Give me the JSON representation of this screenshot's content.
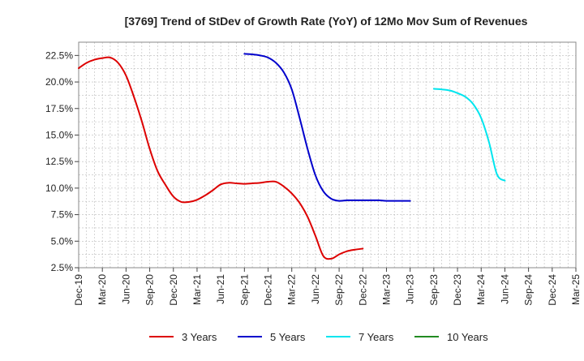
{
  "chart_data": {
    "type": "line",
    "title": "[3769]  Trend of StDev of Growth Rate (YoY) of 12Mo Mov Sum of Revenues",
    "xlabel": "",
    "ylabel": "",
    "ylim": [
      2.5,
      23.75
    ],
    "y_ticks": [
      2.5,
      5.0,
      7.5,
      10.0,
      12.5,
      15.0,
      17.5,
      20.0,
      22.5
    ],
    "y_tick_labels": [
      "2.5%",
      "5.0%",
      "7.5%",
      "10.0%",
      "12.5%",
      "15.0%",
      "17.5%",
      "20.0%",
      "22.5%"
    ],
    "x_tick_labels": [
      "Dec-19",
      "Mar-20",
      "Jun-20",
      "Sep-20",
      "Dec-20",
      "Mar-21",
      "Jun-21",
      "Sep-21",
      "Dec-21",
      "Mar-22",
      "Jun-22",
      "Sep-22",
      "Dec-22",
      "Mar-23",
      "Jun-23",
      "Sep-23",
      "Dec-23",
      "Mar-24",
      "Jun-24",
      "Sep-24",
      "Dec-24",
      "Mar-25"
    ],
    "grid": true,
    "legend_position": "bottom",
    "series": [
      {
        "name": "3 Years",
        "color": "#dd0000",
        "start_index": 0,
        "values": [
          21.3,
          21.8,
          22.1,
          22.25,
          22.3,
          21.8,
          20.6,
          18.6,
          16.3,
          13.7,
          11.6,
          10.3,
          9.2,
          8.7,
          8.7,
          8.9,
          9.3,
          9.8,
          10.35,
          10.5,
          10.45,
          10.4,
          10.45,
          10.5,
          10.6,
          10.6,
          10.15,
          9.5,
          8.6,
          7.3,
          5.5,
          3.6,
          3.35,
          3.75,
          4.05,
          4.2,
          4.3
        ]
      },
      {
        "name": "5 Years",
        "color": "#0000cc",
        "start_index": 21,
        "values": [
          22.65,
          22.6,
          22.5,
          22.3,
          21.8,
          20.9,
          19.3,
          16.6,
          13.7,
          11.2,
          9.7,
          9.0,
          8.8,
          8.85,
          8.85,
          8.85,
          8.85,
          8.85,
          8.8,
          8.8,
          8.8,
          8.8
        ]
      },
      {
        "name": "7 Years",
        "color": "#00e5ee",
        "start_index": 45,
        "values": [
          19.35,
          19.3,
          19.2,
          18.95,
          18.6,
          17.9,
          16.6,
          14.3,
          11.3,
          10.7
        ]
      },
      {
        "name": "10 Years",
        "color": "#228b22",
        "start_index": 0,
        "values": []
      }
    ]
  }
}
